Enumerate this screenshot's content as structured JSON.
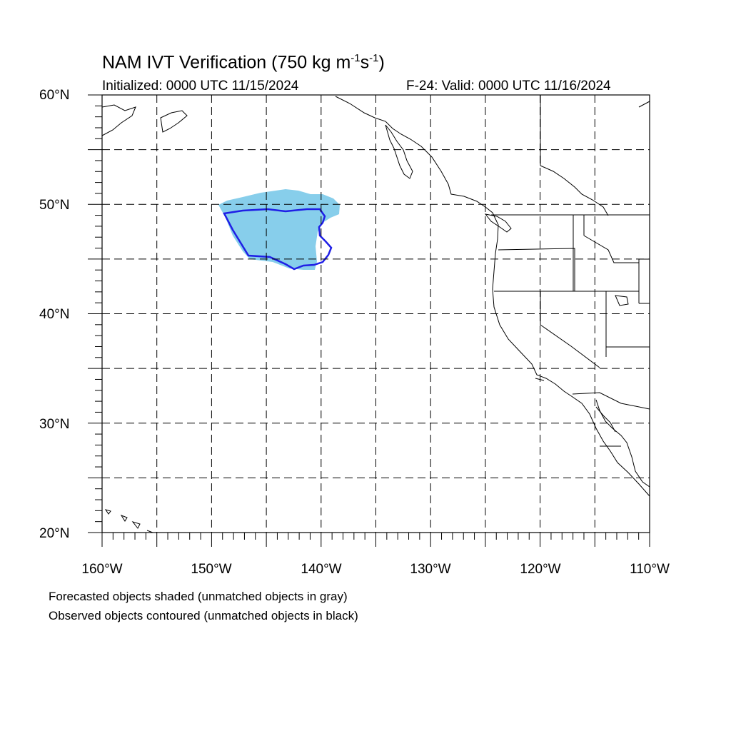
{
  "title": {
    "main": "NAM IVT Verification (750 kg m",
    "sup1": "-1",
    "mid": "s",
    "sup2": "-1",
    "close": ")"
  },
  "initialized": "Initialized: 0000 UTC 11/15/2024",
  "valid": "F-24: Valid: 0000 UTC 11/16/2024",
  "lat_labels": [
    "60°N",
    "50°N",
    "40°N",
    "30°N",
    "20°N"
  ],
  "lon_labels": [
    "160°W",
    "150°W",
    "140°W",
    "130°W",
    "120°W",
    "110°W"
  ],
  "footer": {
    "line1": "Forecasted objects shaded (unmatched objects in gray)",
    "line2": "Observed objects contoured (unmatched objects in black)"
  },
  "colors": {
    "forecast_fill": "#87ceeb",
    "observed_contour": "#1f1fe6",
    "coastline": "#000000",
    "grid": "#000000"
  },
  "map_extent": {
    "lon_min": -160,
    "lon_max": -110,
    "lat_min": 20,
    "lat_max": 60
  }
}
